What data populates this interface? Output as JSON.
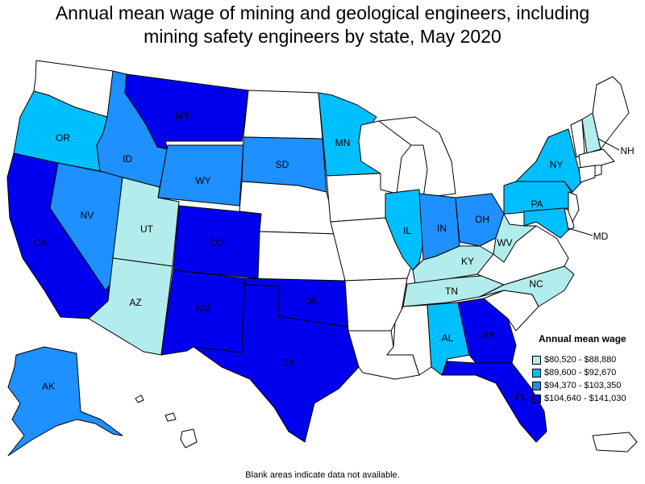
{
  "title_line1": "Annual mean wage of mining and geological engineers, including",
  "title_line2": "mining safety engineers by state, May 2020",
  "footnote": "Blank areas indicate data not available.",
  "legend": {
    "title": "Annual mean wage",
    "bins": [
      {
        "label": "$80,520 - $88,880",
        "color": "#b3ecec"
      },
      {
        "label": "$89,600 - $92,670",
        "color": "#00bfff"
      },
      {
        "label": "$94,370 - $103,350",
        "color": "#1e90ff"
      },
      {
        "label": "$104,640 - $141,030",
        "color": "#0000ee"
      }
    ]
  },
  "colors": {
    "no_data": "#ffffff"
  },
  "states": {
    "WA": {
      "bin": -1
    },
    "OR": {
      "bin": 1,
      "label": "OR"
    },
    "CA": {
      "bin": 3,
      "label": "CA"
    },
    "ID": {
      "bin": 2,
      "label": "ID"
    },
    "NV": {
      "bin": 2,
      "label": "NV"
    },
    "MT": {
      "bin": 3,
      "label": "MT"
    },
    "WY": {
      "bin": 2,
      "label": "WY"
    },
    "UT": {
      "bin": 0,
      "label": "UT"
    },
    "AZ": {
      "bin": 0,
      "label": "AZ"
    },
    "CO": {
      "bin": 3,
      "label": "CO"
    },
    "NM": {
      "bin": 3,
      "label": "NM"
    },
    "ND": {
      "bin": -1
    },
    "SD": {
      "bin": 2,
      "label": "SD"
    },
    "NE": {
      "bin": -1
    },
    "KS": {
      "bin": -1
    },
    "OK": {
      "bin": 3,
      "label": "OK"
    },
    "TX": {
      "bin": 3,
      "label": "TX"
    },
    "MN": {
      "bin": 1,
      "label": "MN"
    },
    "IA": {
      "bin": -1
    },
    "MO": {
      "bin": -1
    },
    "AR": {
      "bin": -1
    },
    "LA": {
      "bin": -1
    },
    "WI": {
      "bin": -1
    },
    "IL": {
      "bin": 1,
      "label": "IL"
    },
    "MI": {
      "bin": -1
    },
    "IN": {
      "bin": 2,
      "label": "IN"
    },
    "OH": {
      "bin": 2,
      "label": "OH"
    },
    "KY": {
      "bin": 0,
      "label": "KY"
    },
    "TN": {
      "bin": 0,
      "label": "TN"
    },
    "MS": {
      "bin": -1
    },
    "AL": {
      "bin": 1,
      "label": "AL"
    },
    "GA": {
      "bin": 3,
      "label": "GA"
    },
    "FL": {
      "bin": 3,
      "label": "FL"
    },
    "SC": {
      "bin": -1
    },
    "NC": {
      "bin": 0,
      "label": "NC"
    },
    "VA": {
      "bin": -1
    },
    "WV": {
      "bin": 0,
      "label": "WV"
    },
    "PA": {
      "bin": 1,
      "label": "PA"
    },
    "NY": {
      "bin": 1,
      "label": "NY"
    },
    "MD": {
      "bin": 1,
      "label": "MD"
    },
    "NH": {
      "bin": 0,
      "label": "NH"
    },
    "VT": {
      "bin": -1
    },
    "ME": {
      "bin": -1
    },
    "NJ": {
      "bin": -1
    },
    "DE": {
      "bin": -1
    },
    "MA": {
      "bin": -1
    },
    "CT": {
      "bin": -1
    },
    "RI": {
      "bin": -1
    },
    "AK": {
      "bin": 2,
      "label": "AK"
    },
    "HI": {
      "bin": -1
    },
    "PR": {
      "bin": -1
    }
  }
}
